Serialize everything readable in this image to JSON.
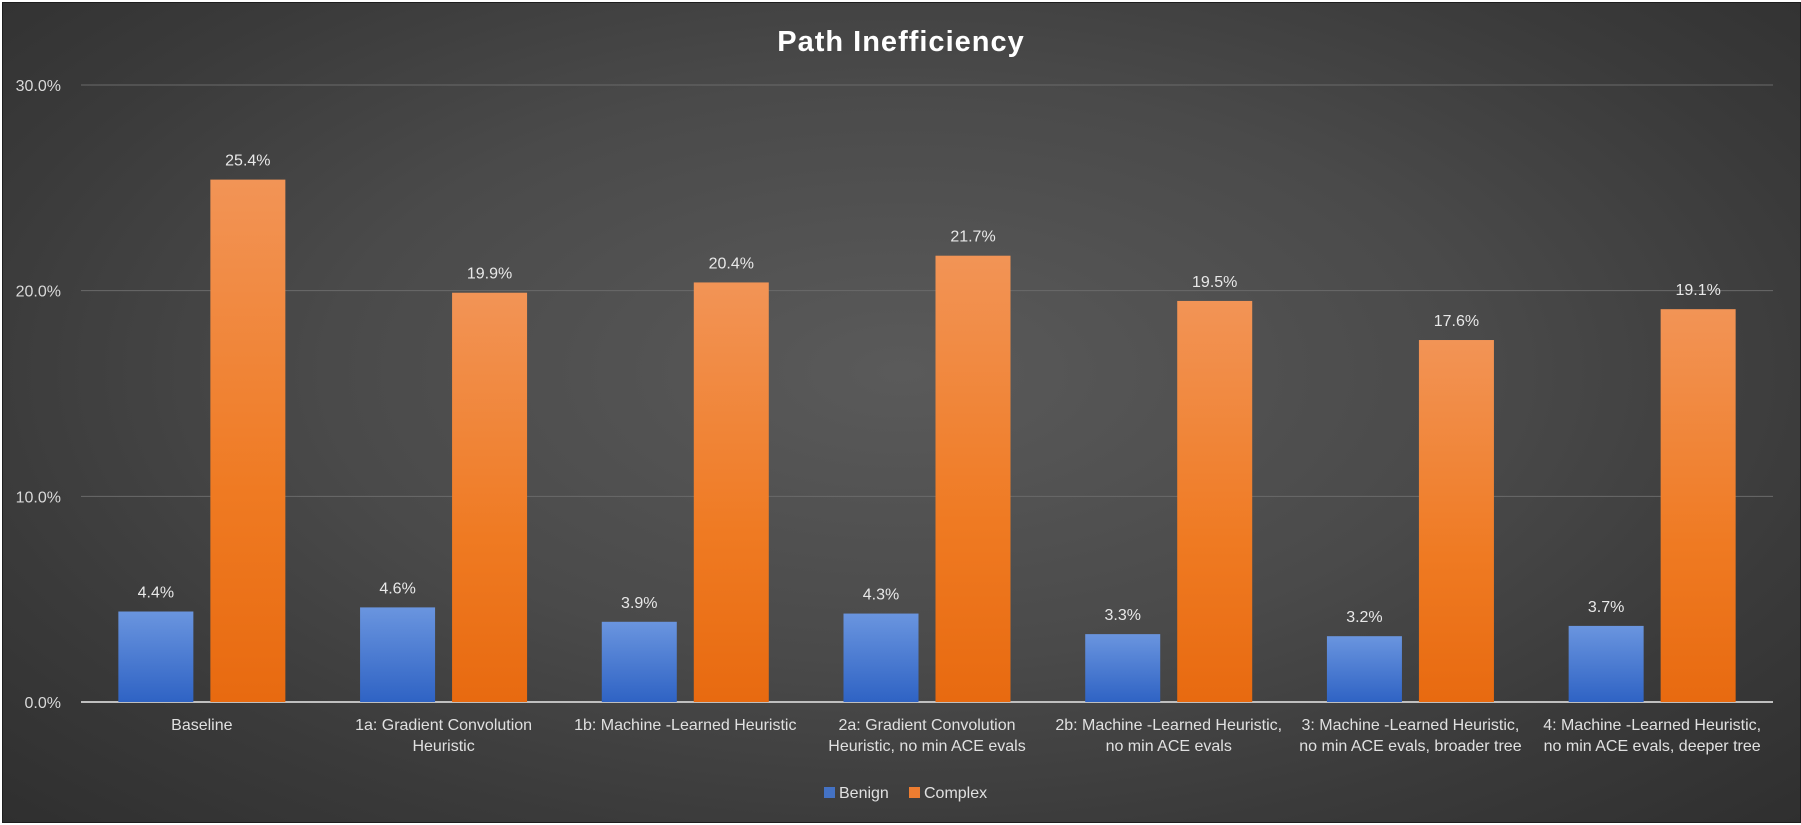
{
  "chart_data": {
    "type": "bar",
    "title": "Path Inefficiency",
    "xlabel": "",
    "ylabel": "",
    "ylim": [
      0,
      30
    ],
    "y_ticks": [
      "0.0%",
      "10.0%",
      "20.0%",
      "30.0%"
    ],
    "y_tick_values": [
      0,
      10,
      20,
      30
    ],
    "grid": true,
    "legend_position": "bottom",
    "categories": [
      [
        "Baseline"
      ],
      [
        "1a: Gradient Convolution",
        "Heuristic"
      ],
      [
        "1b: Machine -Learned Heuristic"
      ],
      [
        "2a: Gradient Convolution",
        "Heuristic, no min ACE evals"
      ],
      [
        "2b: Machine -Learned Heuristic,",
        "no min ACE evals"
      ],
      [
        "3: Machine -Learned Heuristic,",
        "no min ACE evals, broader tree"
      ],
      [
        "4: Machine -Learned Heuristic,",
        "no min ACE evals, deeper tree"
      ]
    ],
    "series": [
      {
        "name": "Benign",
        "color": "#4472c4",
        "values": [
          4.4,
          4.6,
          3.9,
          4.3,
          3.3,
          3.2,
          3.7
        ],
        "labels": [
          "4.4%",
          "4.6%",
          "3.9%",
          "4.3%",
          "3.3%",
          "3.2%",
          "3.7%"
        ]
      },
      {
        "name": "Complex",
        "color": "#ed7d31",
        "values": [
          25.4,
          19.9,
          20.4,
          21.7,
          19.5,
          17.6,
          19.1
        ],
        "labels": [
          "25.4%",
          "19.9%",
          "20.4%",
          "21.7%",
          "19.5%",
          "17.6%",
          "19.1%"
        ]
      }
    ]
  }
}
